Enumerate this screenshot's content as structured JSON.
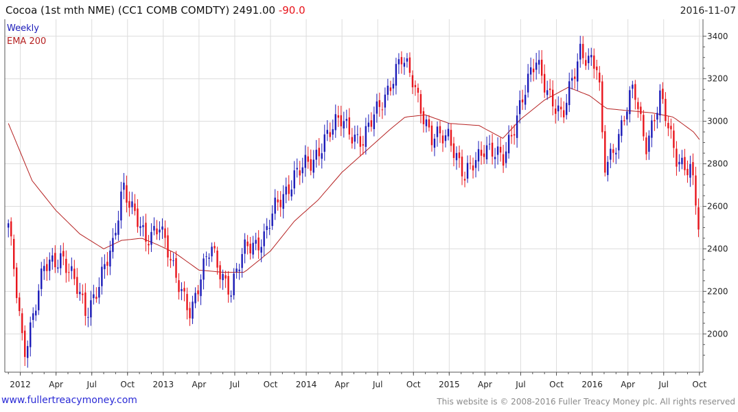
{
  "header": {
    "title": "Cocoa (1st mth NME) (CC1 COMB COMDTY) 2491.00",
    "change": "-90.0",
    "date": "2016-11-07"
  },
  "footer": {
    "link": "www.fullertreacymoney.com",
    "copyright": "This website is © 2008-2016 Fuller Treacy Money plc. All rights reserved"
  },
  "colors": {
    "up": "#1a1ab8",
    "down": "#e8141b",
    "ema": "#b52020",
    "grid": "#dcdcdc",
    "axis": "#555555",
    "legend_weekly": "#1a1ab8",
    "legend_ema": "#b52020"
  },
  "chart_data": {
    "type": "candlestick",
    "title": "Cocoa (1st mth NME) (CC1 COMB COMDTY)",
    "frequency": "weekly",
    "legend": [
      "Weekly",
      "EMA 200"
    ],
    "legend_position": "top-left",
    "ylim": [
      1820,
      3480
    ],
    "x_range_months": [
      -0.3,
      58.3
    ],
    "y_ticks": [
      2000,
      2200,
      2400,
      2600,
      2800,
      3000,
      3200,
      3400
    ],
    "x_ticks": [
      {
        "label": "2012",
        "month": 1
      },
      {
        "label": "Apr",
        "month": 4
      },
      {
        "label": "Jul",
        "month": 7
      },
      {
        "label": "Oct",
        "month": 10
      },
      {
        "label": "2013",
        "month": 13
      },
      {
        "label": "Apr",
        "month": 16
      },
      {
        "label": "Jul",
        "month": 19
      },
      {
        "label": "Oct",
        "month": 22
      },
      {
        "label": "2014",
        "month": 25
      },
      {
        "label": "Apr",
        "month": 28
      },
      {
        "label": "Jul",
        "month": 31
      },
      {
        "label": "Oct",
        "month": 34
      },
      {
        "label": "2015",
        "month": 37
      },
      {
        "label": "Apr",
        "month": 40
      },
      {
        "label": "Jul",
        "month": 43
      },
      {
        "label": "Oct",
        "month": 46
      },
      {
        "label": "2016",
        "month": 49
      },
      {
        "label": "Apr",
        "month": 52
      },
      {
        "label": "Jul",
        "month": 55
      },
      {
        "label": "Oct",
        "month": 58
      }
    ],
    "price_path_approx": [
      [
        0,
        2500
      ],
      [
        1.3,
        1920
      ],
      [
        3,
        2300
      ],
      [
        4.5,
        2380
      ],
      [
        6.5,
        2100
      ],
      [
        8.8,
        2400
      ],
      [
        9.6,
        2720
      ],
      [
        11.5,
        2420
      ],
      [
        12.7,
        2540
      ],
      [
        14,
        2250
      ],
      [
        15.3,
        2120
      ],
      [
        17,
        2400
      ],
      [
        18.7,
        2200
      ],
      [
        20,
        2420
      ],
      [
        21.5,
        2450
      ],
      [
        22.5,
        2600
      ],
      [
        24,
        2750
      ],
      [
        25.5,
        2800
      ],
      [
        26.5,
        2930
      ],
      [
        28,
        3000
      ],
      [
        29.8,
        2900
      ],
      [
        31.3,
        3100
      ],
      [
        33,
        3280
      ],
      [
        34,
        3200
      ],
      [
        35.5,
        2900
      ],
      [
        37,
        2950
      ],
      [
        38.3,
        2720
      ],
      [
        40,
        2900
      ],
      [
        41.5,
        2800
      ],
      [
        43,
        3100
      ],
      [
        44.3,
        3270
      ],
      [
        45.5,
        3130
      ],
      [
        46.5,
        3000
      ],
      [
        48,
        3350
      ],
      [
        49.5,
        3230
      ],
      [
        50,
        2780
      ],
      [
        51.3,
        2950
      ],
      [
        52.5,
        3150
      ],
      [
        53.5,
        2900
      ],
      [
        54.7,
        3100
      ],
      [
        56,
        2850
      ],
      [
        57.3,
        2760
      ],
      [
        58,
        2491
      ]
    ],
    "ema_200_approx": [
      [
        0,
        2990
      ],
      [
        2,
        2720
      ],
      [
        4,
        2580
      ],
      [
        6,
        2470
      ],
      [
        8,
        2400
      ],
      [
        9.5,
        2440
      ],
      [
        11.2,
        2450
      ],
      [
        12.5,
        2420
      ],
      [
        14,
        2380
      ],
      [
        16,
        2300
      ],
      [
        18,
        2290
      ],
      [
        19.8,
        2290
      ],
      [
        22,
        2390
      ],
      [
        24,
        2530
      ],
      [
        26,
        2630
      ],
      [
        28,
        2760
      ],
      [
        30,
        2860
      ],
      [
        32,
        2960
      ],
      [
        33.3,
        3020
      ],
      [
        35,
        3030
      ],
      [
        37,
        2990
      ],
      [
        39.5,
        2980
      ],
      [
        41.5,
        2920
      ],
      [
        43,
        3010
      ],
      [
        45,
        3100
      ],
      [
        47,
        3160
      ],
      [
        48.8,
        3120
      ],
      [
        50.2,
        3060
      ],
      [
        52,
        3050
      ],
      [
        54,
        3040
      ],
      [
        55.8,
        3020
      ],
      [
        57.5,
        2950
      ],
      [
        58.2,
        2900
      ]
    ],
    "last_value": 2491.0,
    "last_change": -90.0,
    "date": "2016-11-07"
  }
}
